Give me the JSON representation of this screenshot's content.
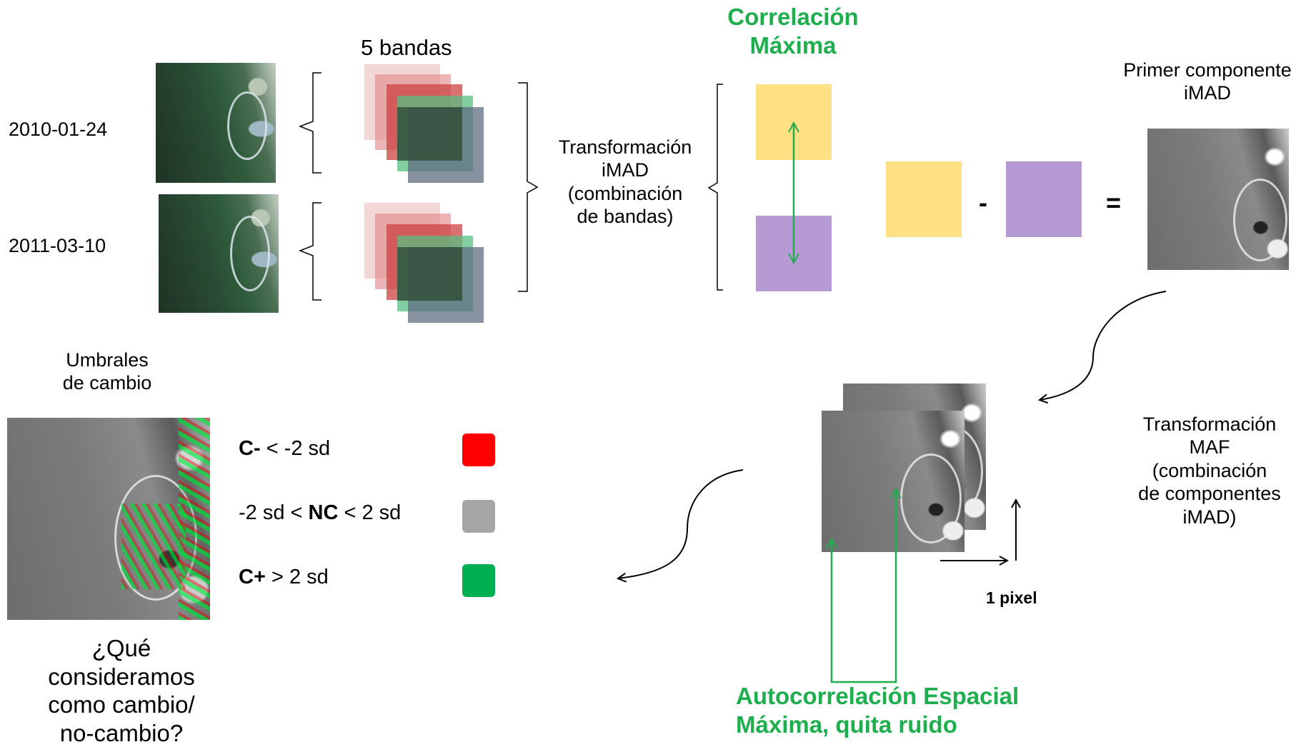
{
  "dates": {
    "date1": "2010-01-24",
    "date2": "2011-03-10"
  },
  "bands_label": "5 bandas",
  "imad_transform": {
    "line1": "Transformación",
    "line2": "iMAD",
    "line3": "(combinación",
    "line4": "de bandas)"
  },
  "max_correlation": {
    "line1": "Correlación",
    "line2": "Máxima"
  },
  "operators": {
    "minus": "-",
    "equals": "="
  },
  "first_component": {
    "line1": "Primer componente",
    "line2": "iMAD"
  },
  "maf_transform": {
    "line1": "Transformación",
    "line2": "MAF",
    "line3": "(combinación",
    "line4": "de componentes",
    "line5": "iMAD)"
  },
  "pixel_shift_label": "1 pixel",
  "spatial_autocorrelation": {
    "line1": "Autocorrelación Espacial",
    "line2": "Máxima, quita ruido"
  },
  "thresholds_title": {
    "line1": "Umbrales",
    "line2": "de cambio"
  },
  "legend": [
    {
      "prefix": "C-",
      "rest": " < -2 sd",
      "color": "#ff0000"
    },
    {
      "pre": "-2 sd < ",
      "bold": "NC",
      "post": " < 2 sd",
      "color": "#a6a6a6"
    },
    {
      "prefix": "C+",
      "rest": " > 2 sd",
      "color": "#00b050"
    }
  ],
  "question": {
    "line1": "¿Qué",
    "line2": "consideramos",
    "line3": "como cambio/",
    "line4": "no-cambio?"
  },
  "colors": {
    "yellow": "#ffe083",
    "purple": "#b59ad3",
    "green_text": "#1fae4e"
  }
}
